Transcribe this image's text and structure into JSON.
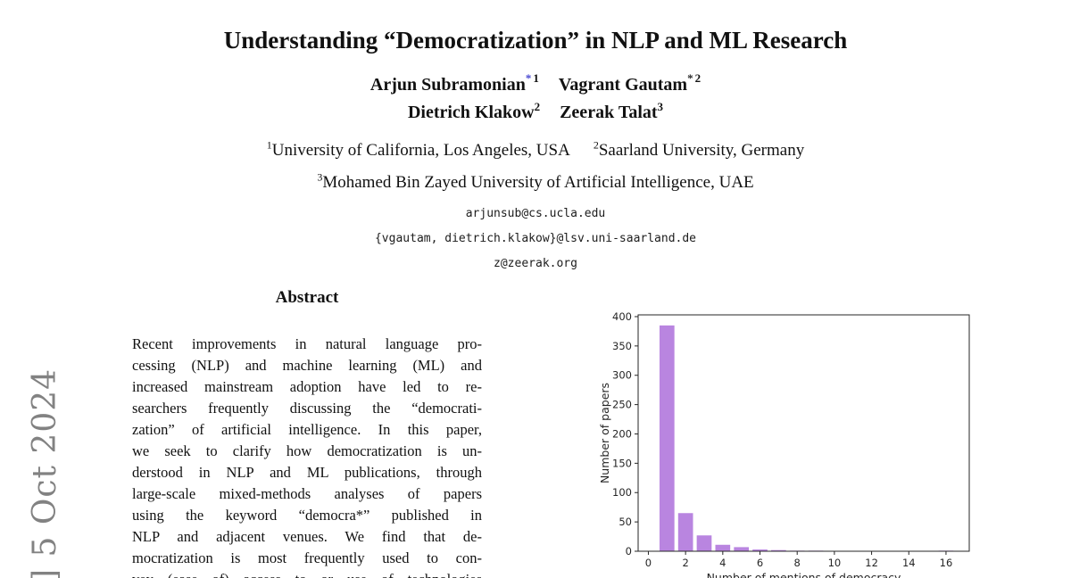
{
  "arxiv": {
    "text": "] 5 Oct 2024",
    "color": "#828282"
  },
  "header": {
    "title": "Understanding “Democratization” in NLP and ML Research",
    "author_lines": [
      [
        {
          "name": "Arjun Subramonian",
          "marker": "*",
          "marker_color": "#4747d1",
          "sup": "1"
        },
        {
          "name": "Vagrant Gautam",
          "marker": "*",
          "marker_color": "#2b2b2b",
          "sup": "2"
        }
      ],
      [
        {
          "name": "Dietrich Klakow",
          "marker": "",
          "marker_color": "",
          "sup": "2"
        },
        {
          "name": "Zeerak Talat",
          "marker": "",
          "marker_color": "",
          "sup": "3"
        }
      ]
    ],
    "affil_lines": [
      [
        {
          "sup": "1",
          "text": "University of California, Los Angeles, USA"
        },
        {
          "sup": "2",
          "text": "Saarland University, Germany"
        }
      ],
      [
        {
          "sup": "3",
          "text": "Mohamed Bin Zayed University of Artificial Intelligence, UAE"
        }
      ]
    ],
    "emails": [
      "arjunsub@cs.ucla.edu",
      "{vgautam, dietrich.klakow}@lsv.uni-saarland.de",
      "z@zeerak.org"
    ]
  },
  "abstract": {
    "heading": "Abstract",
    "lines": [
      "Recent improvements in natural language pro-",
      "cessing (NLP) and machine learning (ML) and",
      "increased mainstream adoption have led to re-",
      "searchers frequently discussing the “democrati-",
      "zation” of artificial intelligence. In this paper,",
      "we seek to clarify how democratization is un-",
      "derstood in NLP and ML publications, through",
      "large-scale mixed-methods analyses of papers",
      "using the keyword “democra*” published in",
      "NLP and adjacent venues.  We find that de-",
      "mocratization is most frequently used to con-",
      "vey (ease of) access to or use of technologies"
    ]
  },
  "chart_data": {
    "type": "bar",
    "title": "",
    "xlabel": "Number of mentions of democracy",
    "ylabel": "Number of papers",
    "x": [
      1,
      2,
      3,
      4,
      5,
      6,
      7,
      8,
      9,
      16
    ],
    "values": [
      385,
      65,
      27,
      11,
      7,
      3,
      2,
      1,
      1,
      1
    ],
    "bar_color": "#b985e0",
    "bar_width": 0.8,
    "xlim": [
      -0.55,
      17.25
    ],
    "ylim": [
      0,
      403
    ],
    "xticks": [
      0,
      2,
      4,
      6,
      8,
      10,
      12,
      14,
      16
    ],
    "yticks": [
      0,
      50,
      100,
      150,
      200,
      250,
      300,
      350,
      400
    ],
    "grid": false,
    "legend_position": "none"
  }
}
